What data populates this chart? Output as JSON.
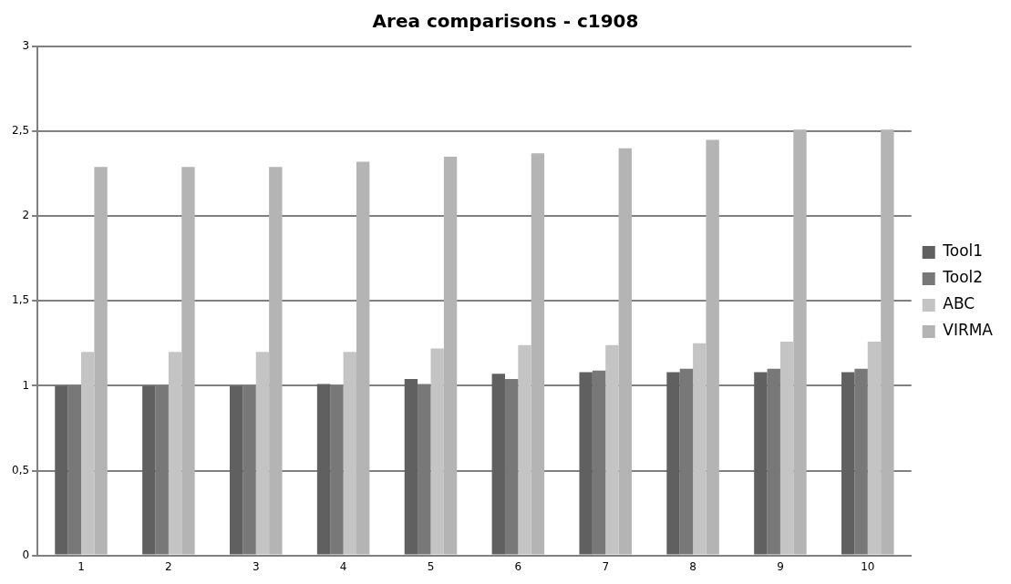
{
  "chart_data": {
    "type": "bar",
    "title": "Area comparisons - c1908",
    "categories": [
      "1",
      "2",
      "3",
      "4",
      "5",
      "6",
      "7",
      "8",
      "9",
      "10"
    ],
    "series": [
      {
        "name": "Tool1",
        "color": "#606060",
        "values": [
          1,
          1,
          1,
          1.01,
          1.04,
          1.07,
          1.08,
          1.08,
          1.08,
          1.08
        ]
      },
      {
        "name": "Tool2",
        "color": "#787878",
        "values": [
          1,
          1,
          1,
          1,
          1.01,
          1.04,
          1.09,
          1.1,
          1.1,
          1.1
        ]
      },
      {
        "name": "ABC",
        "color": "#c4c4c4",
        "values": [
          1.2,
          1.2,
          1.2,
          1.2,
          1.22,
          1.24,
          1.24,
          1.25,
          1.26,
          1.26
        ]
      },
      {
        "name": "VIRMA",
        "color": "#b4b4b4",
        "values": [
          2.29,
          2.29,
          2.29,
          2.32,
          2.35,
          2.37,
          2.4,
          2.45,
          2.51,
          2.51
        ]
      }
    ],
    "ylim": [
      0,
      3
    ],
    "yticks": [
      0,
      {
        "value": 0.5,
        "label": "0,5"
      },
      1,
      {
        "value": 1.5,
        "label": "1,5"
      },
      2,
      {
        "value": 2.5,
        "label": "2,5"
      },
      3
    ],
    "grid": "y",
    "legend": "right"
  }
}
